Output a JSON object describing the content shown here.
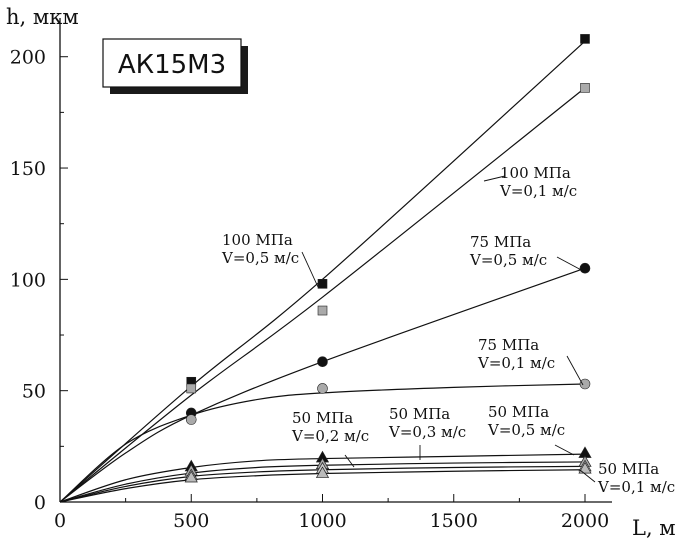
{
  "chart_data": {
    "type": "scatter",
    "title": "АК15М3",
    "xlabel": "L, м",
    "ylabel": "h, мкм",
    "xlim": [
      0,
      2000
    ],
    "ylim": [
      0,
      212
    ],
    "xticks": [
      0,
      500,
      1000,
      1500,
      2000
    ],
    "yticks": [
      0,
      50,
      100,
      150,
      200
    ],
    "grid": false,
    "x": [
      0,
      500,
      1000,
      2000
    ],
    "series": [
      {
        "name": "100 МПа V=0,5 м/с",
        "marker": "square",
        "color": "#111111",
        "values": [
          0,
          54,
          98,
          208
        ],
        "fit": [
          [
            0,
            0
          ],
          [
            500,
            52
          ],
          [
            1000,
            100
          ],
          [
            2000,
            207
          ]
        ]
      },
      {
        "name": "100 МПа V=0,1 м/с",
        "marker": "square",
        "color": "#aaaaaa",
        "values": [
          0,
          51,
          86,
          186
        ],
        "fit": [
          [
            0,
            0
          ],
          [
            500,
            48
          ],
          [
            1000,
            92
          ],
          [
            2000,
            186
          ]
        ]
      },
      {
        "name": "75 МПа V=0,5 м/с",
        "marker": "circle",
        "color": "#111111",
        "values": [
          0,
          40,
          63,
          105
        ],
        "fit": [
          [
            0,
            0
          ],
          [
            250,
            22
          ],
          [
            500,
            39
          ],
          [
            1000,
            63
          ],
          [
            2000,
            105
          ]
        ]
      },
      {
        "name": "75 МПа V=0,1 м/с",
        "marker": "circle",
        "color": "#aaaaaa",
        "values": [
          0,
          37,
          51,
          53
        ],
        "fit": [
          [
            0,
            0
          ],
          [
            250,
            26
          ],
          [
            500,
            39
          ],
          [
            750,
            46
          ],
          [
            1000,
            49
          ],
          [
            1500,
            51.5
          ],
          [
            2000,
            53
          ]
        ]
      },
      {
        "name": "50 МПа V=0,5 м/с",
        "marker": "triangle",
        "color": "#111111",
        "values": [
          0,
          16,
          20,
          22
        ],
        "fit": [
          [
            0,
            0
          ],
          [
            250,
            10
          ],
          [
            500,
            15.5
          ],
          [
            750,
            18.5
          ],
          [
            1000,
            19.5
          ],
          [
            1500,
            20.5
          ],
          [
            2000,
            21.5
          ]
        ]
      },
      {
        "name": "50 МПа V=0,3 м/с",
        "marker": "triangle",
        "color": "#aaaaaa",
        "values": [
          0,
          14,
          17,
          18
        ],
        "fit": [
          [
            0,
            0
          ],
          [
            250,
            8
          ],
          [
            500,
            13
          ],
          [
            750,
            15.5
          ],
          [
            1000,
            16.5
          ],
          [
            1500,
            17.5
          ],
          [
            2000,
            18
          ]
        ]
      },
      {
        "name": "50 МПа V=0,2 м/с",
        "marker": "triangle",
        "color": "#cccccc",
        "values": [
          0,
          12,
          15,
          16
        ],
        "fit": [
          [
            0,
            0
          ],
          [
            250,
            7
          ],
          [
            500,
            11.5
          ],
          [
            750,
            13.5
          ],
          [
            1000,
            14.5
          ],
          [
            1500,
            15.5
          ],
          [
            2000,
            16
          ]
        ]
      },
      {
        "name": "50 МПа V=0,1 м/с",
        "marker": "triangle",
        "color": "#bbbbbb",
        "values": [
          0,
          11,
          13,
          15
        ],
        "fit": [
          [
            0,
            0
          ],
          [
            250,
            6
          ],
          [
            500,
            10
          ],
          [
            750,
            11.8
          ],
          [
            1000,
            12.8
          ],
          [
            1500,
            13.8
          ],
          [
            2000,
            14.5
          ]
        ]
      }
    ],
    "annotations": [
      {
        "lines": [
          "100 МПа",
          "V=0,5 м/с"
        ],
        "anchor": "left"
      },
      {
        "lines": [
          "100 МПа",
          "V=0,1 м/с"
        ],
        "anchor": "right"
      },
      {
        "lines": [
          "75 МПа",
          "V=0,5 м/с"
        ],
        "anchor": "right"
      },
      {
        "lines": [
          "75 МПа",
          "V=0,1 м/с"
        ],
        "anchor": "right"
      },
      {
        "lines": [
          "50 МПа",
          "V=0,2 м/с"
        ],
        "anchor": "left"
      },
      {
        "lines": [
          "50 МПа",
          "V=0,3 м/с"
        ],
        "anchor": "middle"
      },
      {
        "lines": [
          "50 МПа",
          "V=0,5 м/с"
        ],
        "anchor": "right"
      },
      {
        "lines": [
          "50 МПа",
          "V=0,1 м/с"
        ],
        "anchor": "right"
      }
    ]
  }
}
